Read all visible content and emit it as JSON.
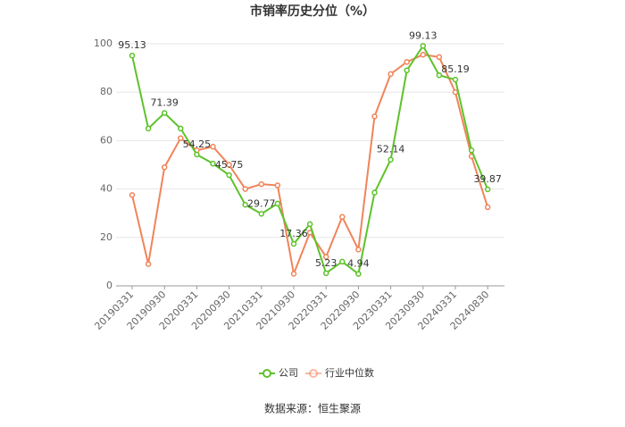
{
  "chart_data": {
    "type": "line",
    "title": "市销率历史分位（%）",
    "categories": [
      "20190331",
      null,
      "20190930",
      null,
      "20200331",
      null,
      "20200930",
      null,
      "20210331",
      null,
      "20210930",
      null,
      "20220331",
      null,
      "20220930",
      null,
      "20230331",
      null,
      "20230930",
      null,
      "20240331",
      null,
      "20240830"
    ],
    "series": [
      {
        "name": "公司",
        "color": "#5ec22b",
        "values": [
          95.13,
          65,
          71.39,
          65,
          54.25,
          50.5,
          45.75,
          33.5,
          29.77,
          34,
          17.36,
          25.5,
          5.23,
          10,
          4.94,
          38.5,
          52.14,
          89,
          99.13,
          87,
          85.19,
          56,
          39.87
        ],
        "value_labels": [
          "95.13",
          null,
          "71.39",
          null,
          "54.25",
          null,
          "45.75",
          null,
          "29.77",
          null,
          "17.36",
          null,
          "5.23",
          null,
          "4.94",
          null,
          "52.14",
          null,
          "99.13",
          null,
          "85.19",
          null,
          "39.87"
        ]
      },
      {
        "name": "行业中位数",
        "color": "#f0845a",
        "values": [
          37.5,
          9,
          49,
          61,
          56,
          57.5,
          50,
          40,
          42,
          41.5,
          5,
          22,
          12,
          28.5,
          15,
          70,
          87.5,
          92.5,
          95.5,
          94.5,
          80,
          53.5,
          32.5
        ]
      }
    ],
    "ylim": [
      0,
      100
    ],
    "yticks": [
      0,
      20,
      40,
      60,
      80,
      100
    ],
    "grid": true,
    "legend": "bottom",
    "source": "数据来源：恒生聚源"
  }
}
